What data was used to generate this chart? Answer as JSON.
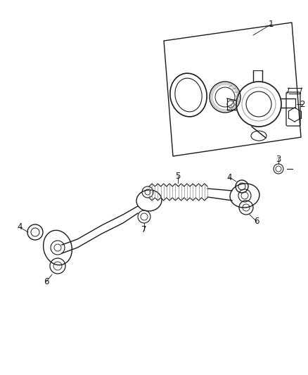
{
  "bg_color": "#ffffff",
  "line_color": "#1a1a1a",
  "gray1": "#888888",
  "gray2": "#cccccc",
  "figsize": [
    4.38,
    5.33
  ],
  "dpi": 100
}
